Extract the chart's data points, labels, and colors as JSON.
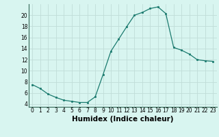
{
  "x": [
    0,
    1,
    2,
    3,
    4,
    5,
    6,
    7,
    8,
    9,
    10,
    11,
    12,
    13,
    14,
    15,
    16,
    17,
    18,
    19,
    20,
    21,
    22,
    23
  ],
  "y": [
    7.5,
    6.8,
    5.8,
    5.2,
    4.7,
    4.5,
    4.3,
    4.3,
    5.3,
    9.3,
    13.5,
    15.7,
    17.9,
    20.0,
    20.5,
    21.2,
    21.5,
    20.3,
    14.2,
    13.7,
    13.0,
    12.0,
    11.8,
    11.7
  ],
  "line_color": "#1a7a6e",
  "marker": "s",
  "marker_size": 2.0,
  "bg_color": "#d8f5f0",
  "grid_color": "#c0ddd8",
  "xlabel": "Humidex (Indice chaleur)",
  "xlim": [
    -0.5,
    23.5
  ],
  "ylim": [
    3.5,
    22.0
  ],
  "yticks": [
    4,
    6,
    8,
    10,
    12,
    14,
    16,
    18,
    20
  ],
  "xticks": [
    0,
    1,
    2,
    3,
    4,
    5,
    6,
    7,
    8,
    9,
    10,
    11,
    12,
    13,
    14,
    15,
    16,
    17,
    18,
    19,
    20,
    21,
    22,
    23
  ],
  "tick_label_size": 5.5,
  "xlabel_size": 7.5,
  "xlabel_bold": true,
  "line_width": 0.9
}
